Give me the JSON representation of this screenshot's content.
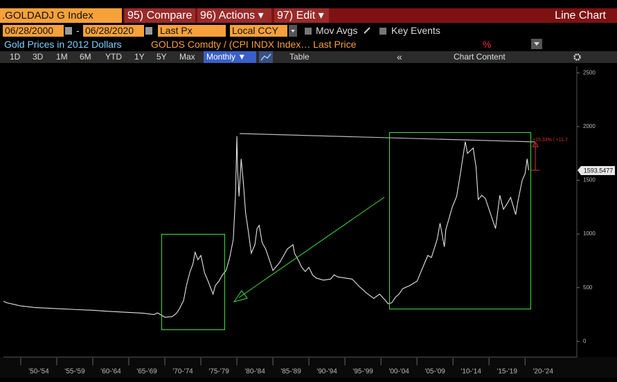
{
  "toolbar": {
    "security": ".GOLDADJ G Index",
    "menu": [
      "95) Compare",
      "96) Actions ▾",
      "97) Edit ▾"
    ],
    "view": "Line Chart",
    "start_date": "06/28/2000",
    "date_separator": "-",
    "end_date": "06/28/2020",
    "field": "Last Px",
    "currency": "Local CCY",
    "options": [
      "Mov Avgs",
      "Key Events"
    ],
    "periods": [
      "1D",
      "3D",
      "1M",
      "6M",
      "YTD",
      "1Y",
      "5Y",
      "Max"
    ],
    "frequency": "Monthly ▼",
    "table": "Table",
    "collapse": "«",
    "chart_content": "Chart Content"
  },
  "chart_data": {
    "type": "line",
    "description": "GOLDS Comdty / (CPI INDX Index… Last Price",
    "units_marker": "%",
    "x": [
      1947.6,
      1948,
      1949,
      1950,
      1952,
      1955,
      1958,
      1960,
      1962,
      1965,
      1967,
      1968.5,
      1969,
      1970,
      1971,
      1971.6,
      1972,
      1972.6,
      1973,
      1973.5,
      1973.9,
      1974.2,
      1974.6,
      1975,
      1975.5,
      1976,
      1976.7,
      1977,
      1977.5,
      1978,
      1978.5,
      1979,
      1979.5,
      1979.8,
      1980,
      1980.1,
      1980.3,
      1980.6,
      1980.9,
      1981.2,
      1981.6,
      1982,
      1982.5,
      1982.8,
      1983.1,
      1983.5,
      1984,
      1984.5,
      1985,
      1985.5,
      1986,
      1986.5,
      1987,
      1987.8,
      1988,
      1988.5,
      1989,
      1989.5,
      1990,
      1990.5,
      1991,
      1992,
      1993,
      1993.5,
      1994,
      1995,
      1996,
      1997,
      1998,
      1999,
      1999.8,
      2000.5,
      2001,
      2001.5,
      2002,
      2002.5,
      2003,
      2004,
      2005,
      2006,
      2006.5,
      2007,
      2007.8,
      2008.2,
      2008.8,
      2009,
      2009.9,
      2010.5,
      2011,
      2011.7,
      2012,
      2012.8,
      2013.2,
      2013.5,
      2014,
      2014.5,
      2015,
      2015.9,
      2016.5,
      2017,
      2017.5,
      2018,
      2018.7,
      2019,
      2019.6,
      2020,
      2020.3,
      2020.5
    ],
    "series": [
      {
        "name": "Gold Prices in 2012 Dollars",
        "color": "#e4e4e4",
        "values": [
          375,
          360,
          345,
          330,
          315,
          305,
          295,
          290,
          280,
          270,
          262,
          250,
          265,
          225,
          230,
          260,
          300,
          380,
          520,
          650,
          720,
          830,
          760,
          800,
          640,
          560,
          440,
          520,
          560,
          620,
          660,
          780,
          950,
          1350,
          1910,
          1600,
          1350,
          1700,
          1480,
          1200,
          1020,
          820,
          900,
          1050,
          1080,
          920,
          860,
          760,
          660,
          700,
          740,
          800,
          860,
          900,
          820,
          760,
          690,
          650,
          690,
          620,
          590,
          570,
          580,
          620,
          600,
          590,
          580,
          510,
          450,
          400,
          440,
          390,
          350,
          360,
          410,
          440,
          490,
          520,
          560,
          720,
          800,
          780,
          950,
          1100,
          880,
          1040,
          1250,
          1350,
          1550,
          1860,
          1750,
          1800,
          1620,
          1320,
          1360,
          1330,
          1230,
          1050,
          1360,
          1230,
          1280,
          1340,
          1180,
          1300,
          1500,
          1560,
          1700,
          1593.5477
        ]
      }
    ],
    "last_value": 1593.5477,
    "annotation": "+15.33% / +11.7",
    "xlim": [
      1947.6,
      2026.9
    ],
    "ylim": [
      -140,
      2560
    ],
    "yticks": [
      0,
      500,
      1000,
      1500,
      2000,
      2500
    ],
    "xticks": [
      {
        "value": 1950,
        "label": "'50-'54"
      },
      {
        "value": 1955,
        "label": "'55-'59"
      },
      {
        "value": 1960,
        "label": "'60-'64"
      },
      {
        "value": 1965,
        "label": "'65-'69"
      },
      {
        "value": 1970,
        "label": "'70-'74"
      },
      {
        "value": 1975,
        "label": "'75-'79"
      },
      {
        "value": 1980,
        "label": "'80-'84"
      },
      {
        "value": 1985,
        "label": "'85-'89"
      },
      {
        "value": 1990,
        "label": "'90-'94"
      },
      {
        "value": 1995,
        "label": "'95-'99"
      },
      {
        "value": 2000,
        "label": "'00-'04"
      },
      {
        "value": 2005,
        "label": "'05-'09"
      },
      {
        "value": 2010,
        "label": "'10-'14"
      },
      {
        "value": 2015,
        "label": "'15-'19"
      },
      {
        "value": 2020,
        "label": "'20-'24"
      }
    ]
  }
}
